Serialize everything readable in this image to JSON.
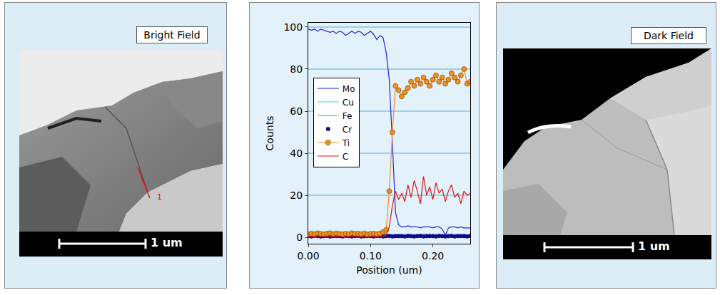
{
  "bright_field_panel": {
    "label": "Bright Field",
    "scale_bar": "1 um",
    "marker_label": "1"
  },
  "chart_data": {
    "type": "line",
    "x_label": "Position (um)",
    "y_label": "Counts",
    "xlim": [
      0,
      0.26
    ],
    "xticks": [
      {
        "value": 0,
        "label": "0.00"
      },
      {
        "value": 0.1,
        "label": "0.10"
      },
      {
        "value": 0.2,
        "label": "0.20"
      }
    ],
    "ylim": [
      -3,
      102
    ],
    "yticks": [
      0,
      20,
      40,
      60,
      80,
      100
    ],
    "grid": true,
    "legend": "center left",
    "x": [
      0,
      0.005,
      0.01,
      0.015,
      0.02,
      0.025,
      0.03,
      0.035,
      0.04,
      0.045,
      0.05,
      0.055,
      0.06,
      0.065,
      0.07,
      0.075,
      0.08,
      0.085,
      0.09,
      0.095,
      0.1,
      0.105,
      0.11,
      0.115,
      0.12,
      0.125,
      0.13,
      0.135,
      0.14,
      0.145,
      0.15,
      0.155,
      0.16,
      0.165,
      0.17,
      0.175,
      0.18,
      0.185,
      0.19,
      0.195,
      0.2,
      0.205,
      0.21,
      0.215,
      0.22,
      0.225,
      0.23,
      0.235,
      0.24,
      0.245,
      0.25,
      0.255,
      0.26
    ],
    "series": [
      {
        "name": "Mo",
        "color": "#2323d6",
        "line_style": "solid",
        "marker": "none",
        "values": [
          99,
          98.5,
          99,
          98,
          99,
          98.5,
          98,
          97.5,
          98,
          97,
          98,
          97.5,
          96,
          97,
          98,
          97,
          98,
          97.5,
          96,
          97,
          98,
          96.5,
          94,
          96,
          95,
          88,
          75,
          45,
          12,
          6,
          5,
          5,
          5.5,
          5,
          5,
          5,
          4.5,
          5,
          5,
          5,
          4.5,
          5,
          5,
          4,
          1,
          4.5,
          5,
          5,
          4.5,
          5,
          4.5,
          4.5,
          4.5
        ]
      },
      {
        "name": "Cu",
        "color": "#3fd9e0",
        "line_style": "solid",
        "marker": "none",
        "values": [
          1.2,
          0.9,
          1.1,
          1,
          1.3,
          0.8,
          1,
          1.2,
          0.9,
          1.1,
          1.2,
          0.9,
          1.1,
          1,
          1.3,
          0.8,
          1,
          1.2,
          0.9,
          1.1,
          1.2,
          0.9,
          1.1,
          1,
          1.3,
          0.8,
          1,
          1.2,
          0.9,
          1.1,
          1.2,
          0.9,
          1.1,
          1,
          1.3,
          0.8,
          1,
          1.2,
          0.9,
          1.1,
          1.2,
          0.9,
          1.1,
          1,
          1.3,
          0.8,
          1,
          1.2,
          0.9,
          1.1,
          1,
          0.9,
          1.1
        ]
      },
      {
        "name": "Fe",
        "color": "#22c82a",
        "line_style": "solid",
        "marker": "none",
        "values": [
          0.3,
          0.2,
          0.4,
          0.3,
          0.1,
          0.3,
          0.2,
          0.4,
          0.3,
          0.2,
          0.3,
          0.2,
          0.4,
          0.3,
          0.1,
          0.3,
          0.2,
          0.4,
          0.3,
          0.2,
          0.3,
          0.2,
          0.4,
          0.3,
          0.1,
          0.3,
          0.2,
          0.4,
          0.3,
          0.2,
          0.3,
          0.2,
          0.4,
          0.3,
          0.1,
          0.3,
          0.2,
          0.4,
          0.3,
          0.2,
          0.3,
          0.2,
          0.4,
          0.3,
          0.1,
          0.3,
          0.2,
          0.4,
          0.3,
          0.2,
          0.3,
          0.2,
          0.3
        ]
      },
      {
        "name": "Cr",
        "color": "#0c0c8a",
        "line_style": "none",
        "marker": "circle",
        "values": [
          0.6,
          0.5,
          0.7,
          0.6,
          0.5,
          0.6,
          0.7,
          0.5,
          0.6,
          0.6,
          0.6,
          0.5,
          0.7,
          0.6,
          0.5,
          0.6,
          0.7,
          0.5,
          0.6,
          0.6,
          0.6,
          0.5,
          0.7,
          0.6,
          0.5,
          0.6,
          0.7,
          0.5,
          0.6,
          0.6,
          0.6,
          0.5,
          0.7,
          0.6,
          0.5,
          0.6,
          0.7,
          0.5,
          0.6,
          0.6,
          0.6,
          0.5,
          0.7,
          0.6,
          0.5,
          0.6,
          0.7,
          0.5,
          0.6,
          0.6,
          0.6,
          0.5,
          0.7
        ]
      },
      {
        "name": "Ti",
        "color": "#f0901e",
        "line_style": "solid",
        "marker": "circle",
        "values": [
          1.5,
          1.8,
          1.6,
          2,
          1.7,
          1.5,
          1.8,
          2,
          1.6,
          1.9,
          1.7,
          1.5,
          1.8,
          1.6,
          2,
          1.7,
          1.8,
          1.6,
          1.9,
          1.5,
          1.7,
          1.8,
          1.6,
          1.8,
          2.5,
          3.5,
          22,
          50,
          72,
          70,
          67,
          69,
          71,
          74,
          72,
          75,
          73,
          76,
          74,
          72,
          75,
          77,
          74,
          76,
          73,
          75,
          78,
          76,
          74,
          77,
          80,
          73,
          74
        ]
      },
      {
        "name": "C",
        "color": "#e01414",
        "line_style": "solid",
        "marker": "none",
        "values": [
          0.3,
          0.5,
          0.2,
          0.4,
          0.3,
          0.5,
          0.2,
          0.3,
          0.4,
          0.2,
          0.5,
          0.3,
          0.2,
          0.4,
          0.3,
          0.5,
          0.2,
          0.3,
          0.4,
          0.2,
          0.3,
          0.5,
          0.4,
          0.3,
          0.6,
          1,
          5,
          15,
          22,
          18,
          21,
          17,
          25,
          19,
          27,
          22,
          16,
          29,
          20,
          24,
          18,
          26,
          21,
          23,
          17,
          22,
          25,
          19,
          21,
          16,
          22,
          20,
          21
        ]
      }
    ]
  },
  "dark_field_panel": {
    "label": "Dark Field",
    "scale_bar": "1 um"
  }
}
